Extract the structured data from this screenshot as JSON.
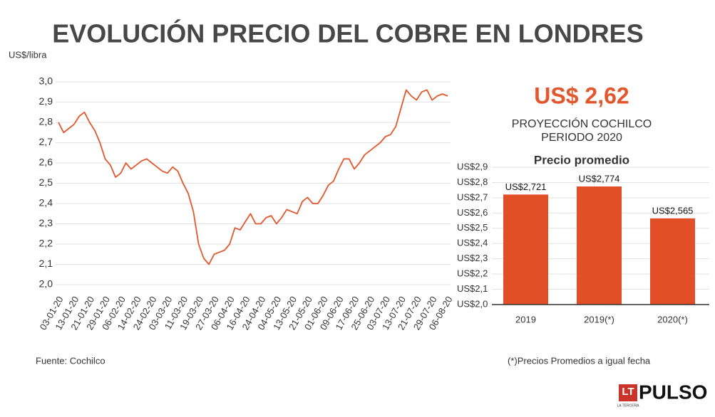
{
  "header": {
    "title": "EVOLUCIÓN PRECIO DEL COBRE EN LONDRES"
  },
  "highlight": {
    "value": "US$ 2,62",
    "lines": [
      "PROYECCIÓN COCHILCO",
      "PERIODO 2020"
    ]
  },
  "footer": {
    "source": "Fuente: Cochilco",
    "note": "(*)Precios Promedios a igual fecha",
    "logo": "PULSO",
    "logo_mark": "LT",
    "logo_sub": "LA TERCERA"
  },
  "chart_data": [
    {
      "type": "line",
      "y_label": "US$/libra",
      "color": "#e2572b",
      "grid": true,
      "categories": [
        "03-01-20",
        null,
        null,
        "13-01-20",
        null,
        null,
        "21-01-20",
        null,
        null,
        "29-01-20",
        null,
        null,
        "06-02-20",
        null,
        null,
        "14-02-20",
        null,
        null,
        "24-02-20",
        null,
        null,
        "03-03-20",
        null,
        null,
        "11-03-20",
        null,
        null,
        "19-03-20",
        null,
        null,
        "27-03-20",
        null,
        null,
        "06-04-20",
        null,
        null,
        "16-04-20",
        null,
        null,
        "24-04-20",
        null,
        null,
        "04-05-20",
        null,
        null,
        "13-05-20",
        null,
        null,
        "21-05-20",
        null,
        null,
        "01-06-20",
        null,
        null,
        "09-06-20",
        null,
        null,
        "17-06-20",
        null,
        null,
        "25-06-20",
        null,
        null,
        "03-07-20",
        null,
        null,
        "13-07-20",
        null,
        null,
        "21-07-20",
        null,
        null,
        "29-07-20",
        null,
        null,
        "06-08-20"
      ],
      "values": [
        2.8,
        2.75,
        2.77,
        2.79,
        2.83,
        2.85,
        2.8,
        2.76,
        2.7,
        2.62,
        2.59,
        2.53,
        2.55,
        2.6,
        2.57,
        2.59,
        2.61,
        2.62,
        2.6,
        2.58,
        2.56,
        2.55,
        2.58,
        2.56,
        2.5,
        2.45,
        2.36,
        2.2,
        2.13,
        2.1,
        2.15,
        2.16,
        2.17,
        2.2,
        2.28,
        2.27,
        2.31,
        2.35,
        2.3,
        2.3,
        2.33,
        2.34,
        2.3,
        2.33,
        2.37,
        2.36,
        2.35,
        2.41,
        2.43,
        2.4,
        2.4,
        2.44,
        2.49,
        2.51,
        2.57,
        2.62,
        2.62,
        2.57,
        2.6,
        2.64,
        2.66,
        2.68,
        2.7,
        2.73,
        2.74,
        2.78,
        2.87,
        2.96,
        2.93,
        2.91,
        2.95,
        2.96,
        2.91,
        2.93,
        2.94,
        2.93
      ],
      "ylim": [
        2.0,
        3.0
      ],
      "yticks": [
        {
          "value": 2.0,
          "label": "2,0"
        },
        {
          "value": 2.1,
          "label": "2,1"
        },
        {
          "value": 2.2,
          "label": "2,2"
        },
        {
          "value": 2.3,
          "label": "2,3"
        },
        {
          "value": 2.4,
          "label": "2,4"
        },
        {
          "value": 2.5,
          "label": "2,5"
        },
        {
          "value": 2.6,
          "label": "2,6"
        },
        {
          "value": 2.7,
          "label": "2,7"
        },
        {
          "value": 2.8,
          "label": "2,8"
        },
        {
          "value": 2.9,
          "label": "2,9"
        },
        {
          "value": 3.0,
          "label": "3,0"
        }
      ]
    },
    {
      "type": "bar",
      "title": "Precio promedio",
      "color": "#e24e26",
      "grid": true,
      "categories": [
        "2019",
        "2019(*)",
        "2020(*)"
      ],
      "values": [
        2.721,
        2.774,
        2.565
      ],
      "value_labels": [
        "US$2,721",
        "US$2,774",
        "US$2,565"
      ],
      "ylim": [
        2.0,
        2.9
      ],
      "yticks": [
        {
          "value": 2.0,
          "label": "US$2,0"
        },
        {
          "value": 2.1,
          "label": "US$2,1"
        },
        {
          "value": 2.2,
          "label": "US$2,2"
        },
        {
          "value": 2.3,
          "label": "US$2,3"
        },
        {
          "value": 2.4,
          "label": "US$2,4"
        },
        {
          "value": 2.5,
          "label": "US$2,5"
        },
        {
          "value": 2.6,
          "label": "US$2,6"
        },
        {
          "value": 2.7,
          "label": "US$2,7"
        },
        {
          "value": 2.8,
          "label": "US$2,8"
        },
        {
          "value": 2.9,
          "label": "US$2,9"
        }
      ]
    }
  ]
}
